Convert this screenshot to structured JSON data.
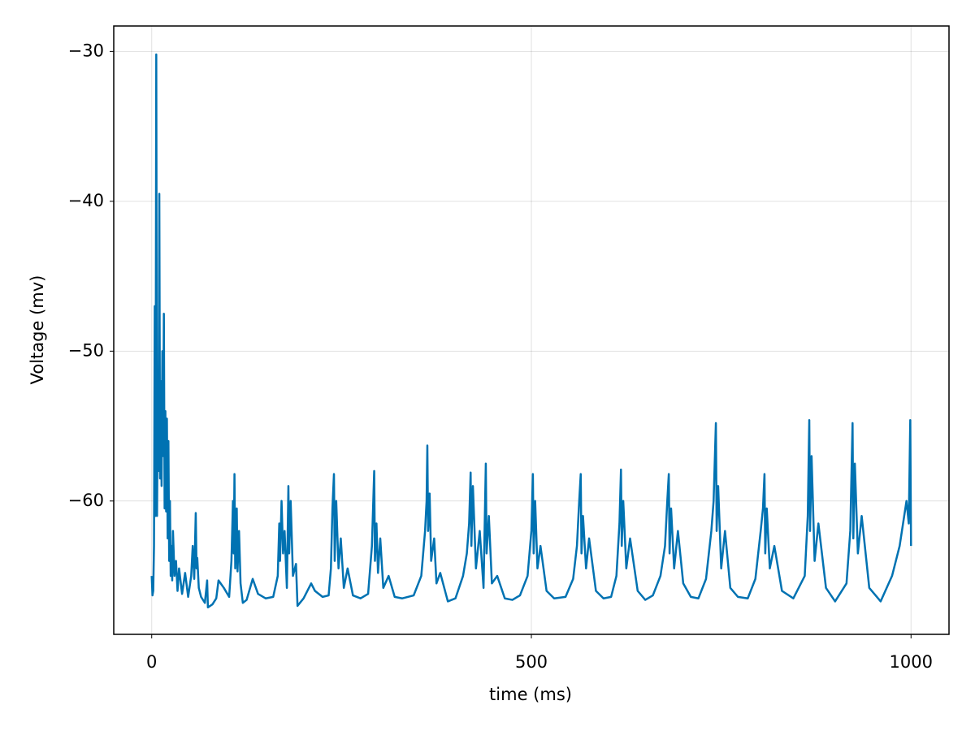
{
  "chart_data": {
    "type": "line",
    "xlabel": "time (ms)",
    "ylabel": "Voltage (mv)",
    "color": "#0072b2",
    "grid": true,
    "xlim": [
      -50,
      1050
    ],
    "ylim": [
      -68.9,
      -28.3
    ],
    "xticks": [
      0,
      500,
      1000
    ],
    "yticks": [
      {
        "value": -30,
        "label": "−30"
      },
      {
        "value": -40,
        "label": "−40"
      },
      {
        "value": -50,
        "label": "−50"
      },
      {
        "value": -60,
        "label": "−60"
      }
    ],
    "x": [
      0,
      1,
      2,
      3,
      4,
      5,
      6,
      7,
      8,
      9,
      10,
      11,
      12,
      13,
      14,
      15,
      16,
      17,
      18,
      19,
      20,
      21,
      22,
      23,
      24,
      25,
      26,
      27,
      28,
      30,
      32,
      34,
      36,
      40,
      44,
      48,
      52,
      54,
      56,
      58,
      59,
      60,
      62,
      65,
      70,
      73,
      74,
      80,
      85,
      88,
      95,
      102,
      105,
      107,
      108,
      109,
      110,
      112,
      113,
      115,
      117,
      120,
      125,
      133,
      140,
      150,
      160,
      166,
      168,
      169,
      171,
      173,
      175,
      178,
      180,
      181,
      183,
      186,
      190,
      192,
      200,
      210,
      215,
      225,
      233,
      236,
      238,
      240,
      241,
      243,
      246,
      249,
      253,
      258,
      265,
      275,
      285,
      290,
      293,
      294,
      296,
      298,
      301,
      305,
      312,
      320,
      330,
      345,
      355,
      360,
      362,
      363,
      364,
      366,
      368,
      372,
      375,
      380,
      390,
      400,
      410,
      415,
      418,
      420,
      421,
      423,
      427,
      432,
      437,
      440,
      441,
      444,
      448,
      455,
      465,
      475,
      485,
      495,
      500,
      502,
      503,
      505,
      508,
      512,
      520,
      530,
      545,
      555,
      560,
      563,
      565,
      566,
      568,
      572,
      576,
      585,
      595,
      605,
      612,
      616,
      618,
      619,
      621,
      625,
      630,
      640,
      650,
      660,
      670,
      676,
      679,
      681,
      682,
      684,
      688,
      693,
      700,
      710,
      720,
      730,
      737,
      740,
      743,
      744,
      746,
      750,
      755,
      762,
      772,
      785,
      795,
      802,
      805,
      807,
      808,
      810,
      814,
      820,
      830,
      845,
      860,
      864,
      866,
      867,
      869,
      873,
      878,
      888,
      900,
      915,
      920,
      923,
      924,
      926,
      930,
      935,
      945,
      960,
      975,
      985,
      994,
      997,
      999,
      1000
    ],
    "values": [
      -65,
      -66.3,
      -66,
      -63,
      -47,
      -61,
      -30.2,
      -61,
      -53,
      -58,
      -39.5,
      -58.5,
      -52,
      -59,
      -50,
      -57,
      -47.5,
      -60.5,
      -54,
      -60.7,
      -54.5,
      -62.5,
      -56,
      -64,
      -60,
      -65,
      -63,
      -65.3,
      -62,
      -65,
      -64,
      -66,
      -64.5,
      -66.2,
      -64.8,
      -66.4,
      -65,
      -63,
      -65.2,
      -60.8,
      -64.5,
      -63.8,
      -65.8,
      -66.4,
      -66.8,
      -65.3,
      -67.1,
      -66.9,
      -66.5,
      -65.3,
      -65.8,
      -66.4,
      -64,
      -60,
      -63.5,
      -58.2,
      -64.5,
      -60.5,
      -64.7,
      -62,
      -65.5,
      -66.8,
      -66.6,
      -65.2,
      -66.2,
      -66.5,
      -66.4,
      -65,
      -61.5,
      -64,
      -60,
      -63.5,
      -62,
      -65.8,
      -59,
      -63.5,
      -60,
      -65,
      -64.2,
      -67,
      -66.5,
      -65.5,
      -66,
      -66.4,
      -66.3,
      -64.5,
      -60.5,
      -58.2,
      -64,
      -60,
      -64.5,
      -62.5,
      -65.8,
      -64.5,
      -66.3,
      -66.5,
      -66.2,
      -63,
      -58,
      -64,
      -61.5,
      -64.8,
      -62.5,
      -65.8,
      -65,
      -66.4,
      -66.5,
      -66.3,
      -65,
      -62,
      -60,
      -56.3,
      -62,
      -59.5,
      -64,
      -62.5,
      -65.5,
      -64.8,
      -66.7,
      -66.5,
      -65,
      -63.5,
      -61.5,
      -58.1,
      -63,
      -59,
      -64.5,
      -62,
      -65.8,
      -57.5,
      -63.5,
      -61,
      -65.5,
      -65,
      -66.5,
      -66.6,
      -66.3,
      -65,
      -62,
      -58.2,
      -63.5,
      -60,
      -64.5,
      -63,
      -66,
      -66.5,
      -66.4,
      -65.2,
      -63,
      -60,
      -58.2,
      -63.5,
      -61,
      -64.5,
      -62.5,
      -66,
      -66.5,
      -66.4,
      -65,
      -61.5,
      -57.9,
      -63,
      -60,
      -64.5,
      -62.5,
      -66,
      -66.6,
      -66.3,
      -65,
      -63,
      -60,
      -58.2,
      -63.5,
      -60.5,
      -64.5,
      -62,
      -65.5,
      -66.4,
      -66.5,
      -65.2,
      -62,
      -60,
      -54.8,
      -62,
      -59,
      -64.5,
      -62,
      -65.8,
      -66.4,
      -66.5,
      -65.2,
      -62,
      -60.5,
      -58.2,
      -63.5,
      -60.5,
      -64.5,
      -63,
      -66,
      -66.5,
      -65,
      -61,
      -54.6,
      -62,
      -57,
      -64,
      -61.5,
      -65.8,
      -66.7,
      -65.5,
      -62,
      -54.8,
      -62.5,
      -57.5,
      -63.5,
      -61,
      -65.8,
      -66.7,
      -65,
      -63,
      -60,
      -61.5,
      -54.6,
      -63
    ]
  }
}
